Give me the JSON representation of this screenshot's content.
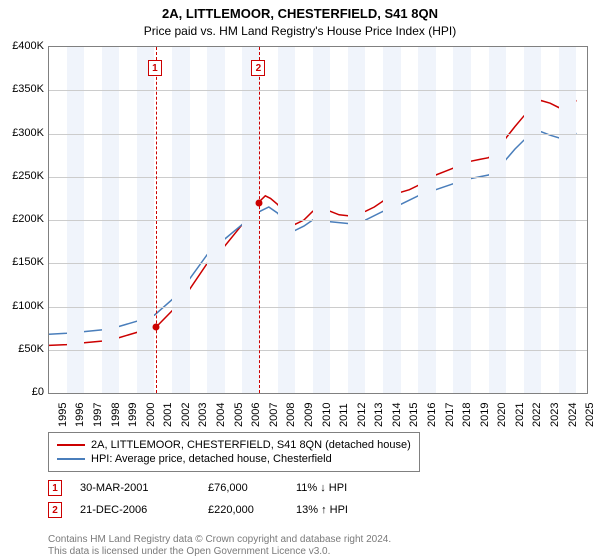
{
  "title_main": "2A, LITTLEMOOR, CHESTERFIELD, S41 8QN",
  "title_sub": "Price paid vs. HM Land Registry's House Price Index (HPI)",
  "chart": {
    "type": "line",
    "background_color": "#ffffff",
    "stripe_color": "#f0f4fb",
    "grid_color": "#cccccc",
    "border_color": "#808080",
    "x_years": [
      1995,
      1996,
      1997,
      1998,
      1999,
      2000,
      2001,
      2002,
      2003,
      2004,
      2005,
      2006,
      2007,
      2008,
      2009,
      2010,
      2011,
      2012,
      2013,
      2014,
      2015,
      2016,
      2017,
      2018,
      2019,
      2020,
      2021,
      2022,
      2023,
      2024,
      2025
    ],
    "x_range": [
      1995,
      2025.6
    ],
    "y_ticks": [
      0,
      50000,
      100000,
      150000,
      200000,
      250000,
      300000,
      350000,
      400000
    ],
    "y_tick_labels": [
      "£0",
      "£50K",
      "£100K",
      "£150K",
      "£200K",
      "£250K",
      "£300K",
      "£350K",
      "£400K"
    ],
    "y_range": [
      0,
      400000
    ],
    "label_fontsize": 11,
    "series": [
      {
        "name": "2A, LITTLEMOOR, CHESTERFIELD, S41 8QN (detached house)",
        "color": "#cc0000",
        "line_width": 1.5,
        "data": [
          [
            1995,
            55000
          ],
          [
            1996,
            56000
          ],
          [
            1997,
            58000
          ],
          [
            1998,
            60000
          ],
          [
            1999,
            64000
          ],
          [
            2000,
            70000
          ],
          [
            2001,
            76000
          ],
          [
            2001.08,
            76000
          ],
          [
            2002,
            95000
          ],
          [
            2003,
            120000
          ],
          [
            2004,
            150000
          ],
          [
            2005,
            170000
          ],
          [
            2006,
            195000
          ],
          [
            2006.97,
            220000
          ],
          [
            2007,
            222000
          ],
          [
            2007.3,
            228000
          ],
          [
            2007.6,
            225000
          ],
          [
            2008,
            218000
          ],
          [
            2008.5,
            205000
          ],
          [
            2009,
            195000
          ],
          [
            2009.5,
            200000
          ],
          [
            2010,
            210000
          ],
          [
            2010.5,
            213000
          ],
          [
            2011,
            210000
          ],
          [
            2011.5,
            206000
          ],
          [
            2012,
            205000
          ],
          [
            2012.5,
            208000
          ],
          [
            2013,
            210000
          ],
          [
            2013.5,
            215000
          ],
          [
            2014,
            222000
          ],
          [
            2014.5,
            228000
          ],
          [
            2015,
            232000
          ],
          [
            2015.5,
            235000
          ],
          [
            2016,
            240000
          ],
          [
            2016.5,
            248000
          ],
          [
            2017,
            252000
          ],
          [
            2017.5,
            256000
          ],
          [
            2018,
            260000
          ],
          [
            2018.5,
            265000
          ],
          [
            2019,
            268000
          ],
          [
            2019.5,
            270000
          ],
          [
            2020,
            272000
          ],
          [
            2020.5,
            280000
          ],
          [
            2021,
            295000
          ],
          [
            2021.5,
            308000
          ],
          [
            2022,
            320000
          ],
          [
            2022.5,
            330000
          ],
          [
            2023,
            338000
          ],
          [
            2023.5,
            335000
          ],
          [
            2024,
            330000
          ],
          [
            2024.5,
            335000
          ],
          [
            2025,
            338000
          ]
        ]
      },
      {
        "name": "HPI: Average price, detached house, Chesterfield",
        "color": "#4a7ebb",
        "line_width": 1.5,
        "data": [
          [
            1995,
            68000
          ],
          [
            1996,
            69000
          ],
          [
            1997,
            71000
          ],
          [
            1998,
            73000
          ],
          [
            1999,
            77000
          ],
          [
            2000,
            83000
          ],
          [
            2001,
            90000
          ],
          [
            2002,
            108000
          ],
          [
            2003,
            132000
          ],
          [
            2004,
            160000
          ],
          [
            2005,
            178000
          ],
          [
            2006,
            195000
          ],
          [
            2007,
            210000
          ],
          [
            2007.5,
            215000
          ],
          [
            2008,
            208000
          ],
          [
            2008.5,
            195000
          ],
          [
            2009,
            188000
          ],
          [
            2009.5,
            193000
          ],
          [
            2010,
            200000
          ],
          [
            2011,
            198000
          ],
          [
            2012,
            196000
          ],
          [
            2013,
            200000
          ],
          [
            2014,
            210000
          ],
          [
            2015,
            218000
          ],
          [
            2016,
            228000
          ],
          [
            2017,
            235000
          ],
          [
            2018,
            242000
          ],
          [
            2019,
            248000
          ],
          [
            2020,
            252000
          ],
          [
            2020.5,
            258000
          ],
          [
            2021,
            270000
          ],
          [
            2021.5,
            282000
          ],
          [
            2022,
            292000
          ],
          [
            2022.5,
            300000
          ],
          [
            2023,
            302000
          ],
          [
            2023.5,
            298000
          ],
          [
            2024,
            295000
          ],
          [
            2024.5,
            298000
          ],
          [
            2025,
            300000
          ]
        ]
      }
    ],
    "markers": [
      {
        "n": "1",
        "year": 2001.08,
        "price": 76000
      },
      {
        "n": "2",
        "year": 2006.97,
        "price": 220000
      }
    ]
  },
  "legend": {
    "items": [
      {
        "color": "#cc0000",
        "label": "2A, LITTLEMOOR, CHESTERFIELD, S41 8QN (detached house)"
      },
      {
        "color": "#4a7ebb",
        "label": "HPI: Average price, detached house, Chesterfield"
      }
    ]
  },
  "transactions": [
    {
      "n": "1",
      "date": "30-MAR-2001",
      "price": "£76,000",
      "delta": "11% ↓ HPI"
    },
    {
      "n": "2",
      "date": "21-DEC-2006",
      "price": "£220,000",
      "delta": "13% ↑ HPI"
    }
  ],
  "footer_line1": "Contains HM Land Registry data © Crown copyright and database right 2024.",
  "footer_line2": "This data is licensed under the Open Government Licence v3.0."
}
